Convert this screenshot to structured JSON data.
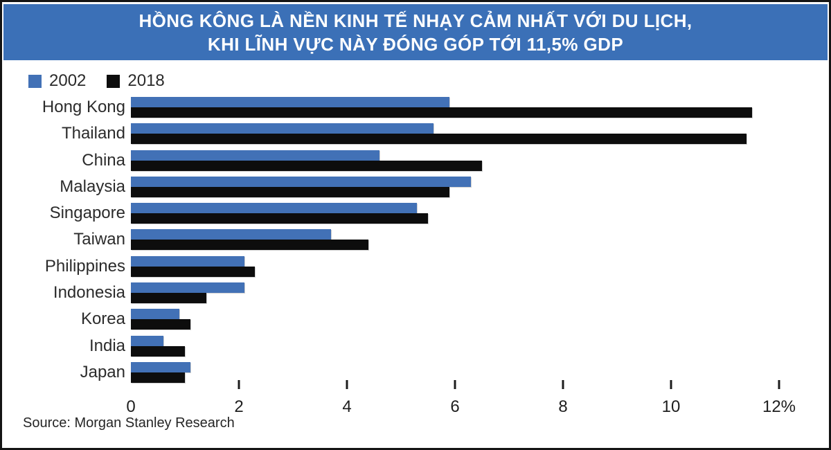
{
  "banner": {
    "line1": "HỒNG KÔNG LÀ NỀN KINH TẾ NHẠY CẢM NHẤT VỚI DU LỊCH,",
    "line2": "KHI LĨNH VỰC NÀY ĐÓNG GÓP TỚI 11,5% GDP",
    "bg_color": "#3b70b7",
    "text_color": "#ffffff"
  },
  "source": "Source: Morgan Stanley Research",
  "chart_data": {
    "type": "bar",
    "orientation": "horizontal",
    "title": "HỒNG KÔNG LÀ NỀN KINH TẾ NHẠY CẢM NHẤT VỚI DU LỊCH, KHI LĨNH VỰC NÀY ĐÓNG GÓP TỚI 11,5% GDP",
    "categories": [
      "Hong Kong",
      "Thailand",
      "China",
      "Malaysia",
      "Singapore",
      "Taiwan",
      "Philippines",
      "Indonesia",
      "Korea",
      "India",
      "Japan"
    ],
    "series": [
      {
        "name": "2002",
        "color": "#4271b6",
        "values": [
          5.9,
          5.6,
          4.6,
          6.3,
          5.3,
          3.7,
          2.1,
          2.1,
          0.9,
          0.6,
          1.1
        ]
      },
      {
        "name": "2018",
        "color": "#0d0d0d",
        "values": [
          11.5,
          11.4,
          6.5,
          5.9,
          5.5,
          4.4,
          2.3,
          1.4,
          1.1,
          1.0,
          1.0
        ]
      }
    ],
    "x_ticks": [
      {
        "value": 0,
        "label": "0"
      },
      {
        "value": 2,
        "label": "2"
      },
      {
        "value": 4,
        "label": "4"
      },
      {
        "value": 6,
        "label": "6"
      },
      {
        "value": 8,
        "label": "8"
      },
      {
        "value": 10,
        "label": "10"
      },
      {
        "value": 12,
        "label": "12%"
      }
    ],
    "xlim": [
      0,
      12.3
    ],
    "unit": "%",
    "grid": false,
    "legend_position": "top-left"
  }
}
